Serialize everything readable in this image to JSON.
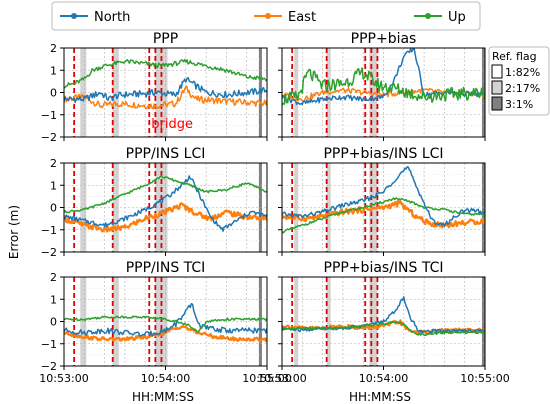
{
  "chart_data": {
    "type": "line",
    "legend": {
      "placement": "top",
      "entries": [
        {
          "name": "North",
          "color": "#1f77b4"
        },
        {
          "name": "East",
          "color": "#ff7f0e"
        },
        {
          "name": "Up",
          "color": "#2ca02c"
        }
      ]
    },
    "ylabel": "Error (m)",
    "xlabel": "HH:MM:SS",
    "y_ticks": [
      "2",
      "1",
      "0",
      "−1",
      "−2"
    ],
    "ylim": [
      -2,
      2
    ],
    "x_ticks_left": [
      "10:53:00",
      "10:54:00",
      "10:55:00"
    ],
    "x_ticks_right": [
      "10:53:00",
      "10:54:00",
      "10:55:00"
    ],
    "ref_flag": {
      "title": "Ref. flag",
      "items": [
        {
          "label": "1:82%",
          "color": "#ffffff"
        },
        {
          "label": "2:17%",
          "color": "#d3d3d3"
        },
        {
          "label": "3:1%",
          "color": "#808080"
        }
      ]
    },
    "annotation": {
      "text": "bridge",
      "color": "#ff0000"
    },
    "panels": [
      {
        "title": "PPP",
        "col": 0,
        "row": 0
      },
      {
        "title": "PPP+bias",
        "col": 1,
        "row": 0
      },
      {
        "title": "PPP/INS LCI",
        "col": 0,
        "row": 1
      },
      {
        "title": "PPP+bias/INS LCI",
        "col": 1,
        "row": 1
      },
      {
        "title": "PPP/INS TCI",
        "col": 0,
        "row": 2
      },
      {
        "title": "PPP+bias/INS TCI",
        "col": 1,
        "row": 2
      }
    ],
    "grid": true
  }
}
